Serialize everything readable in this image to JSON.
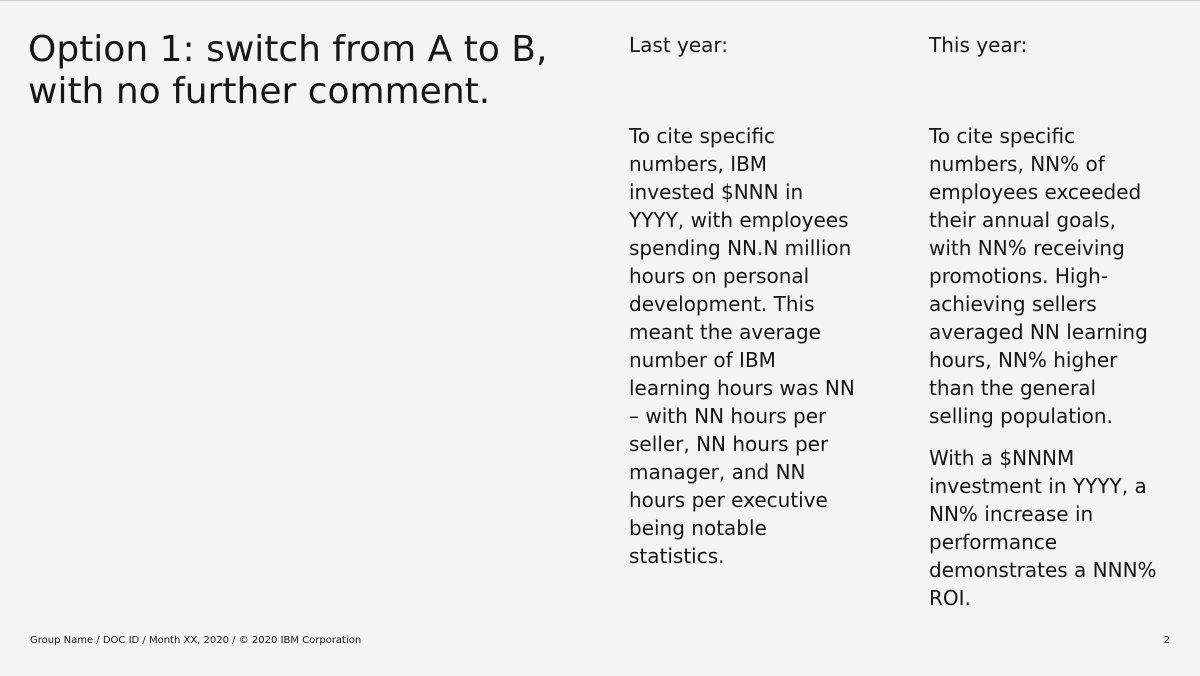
{
  "title": {
    "lines": [
      "Option 1: switch from A to B,",
      "with no further comment."
    ]
  },
  "last_year": {
    "heading": "Last year:",
    "paragraphs": [
      [
        "To cite specific",
        "numbers, IBM",
        "invested $NNN in",
        "YYYY, with employees",
        "spending NN.N million",
        "hours on personal",
        "development. This",
        "meant the average",
        "number of IBM",
        "learning hours was NN",
        "– with NN hours per",
        "seller, NN hours per",
        "manager, and NN",
        "hours per executive",
        "being notable",
        "statistics."
      ]
    ]
  },
  "this_year": {
    "heading": "This year:",
    "paragraphs": [
      [
        "To cite specific",
        "numbers, NN% of",
        "employees exceeded",
        "their annual goals,",
        "with NN% receiving",
        "promotions. High-",
        "achieving sellers",
        "averaged NN learning",
        "hours, NN% higher",
        "than the general",
        "selling population."
      ],
      [
        "With a $NNNM",
        "investment in YYYY, a",
        "NN% increase in",
        "performance",
        "demonstrates a NNN%",
        "ROI."
      ]
    ]
  },
  "footer": {
    "text": "Group Name / DOC ID / Month XX, 2020 / © 2020 IBM Corporation",
    "page_number": "2"
  }
}
